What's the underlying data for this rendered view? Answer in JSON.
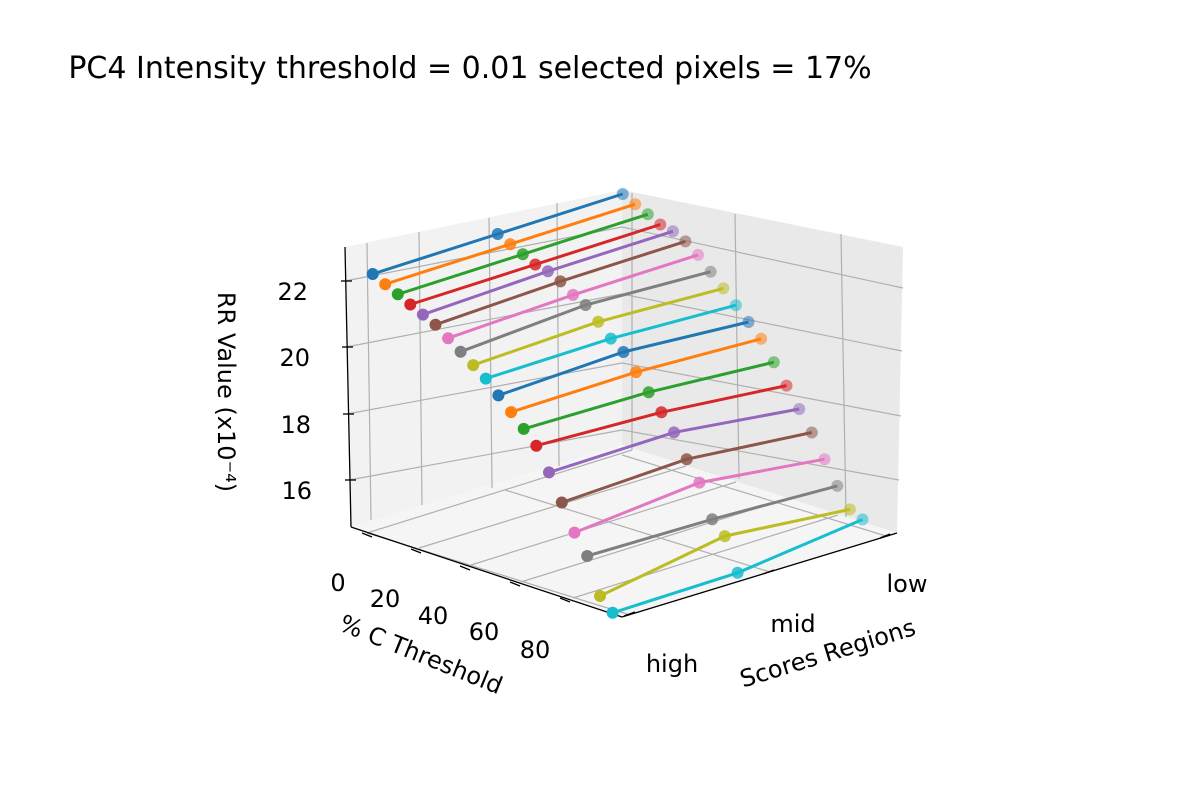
{
  "chart_data": {
    "type": "line",
    "projection": "3d",
    "title": "PC4 Intensity threshold = 0.01 selected pixels = 17%",
    "xlabel": "Scores Regions",
    "ylabel": "% C Threshold",
    "zlabel": "RR Value (x10⁻⁴)",
    "categories": [
      "high",
      "mid",
      "low"
    ],
    "x_tick_labels": [
      "low",
      "mid",
      "high"
    ],
    "y_tick_labels": [
      "0",
      "20",
      "40",
      "60",
      "80"
    ],
    "z_tick_labels": [
      "16",
      "18",
      "20",
      "22"
    ],
    "zlim": [
      15,
      23
    ],
    "grid": true,
    "marker": "circle",
    "series": [
      {
        "c_threshold": 0,
        "color": "#1f77b4",
        "values": [
          22.8,
          22.8,
          22.8
        ]
      },
      {
        "c_threshold": 5,
        "color": "#ff7f0e",
        "values": [
          22.6,
          22.6,
          22.6
        ]
      },
      {
        "c_threshold": 10,
        "color": "#2ca02c",
        "values": [
          22.4,
          22.4,
          22.4
        ]
      },
      {
        "c_threshold": 15,
        "color": "#d62728",
        "values": [
          22.2,
          22.2,
          22.2
        ]
      },
      {
        "c_threshold": 20,
        "color": "#9467bd",
        "values": [
          22.0,
          22.1,
          22.1
        ]
      },
      {
        "c_threshold": 25,
        "color": "#8c564b",
        "values": [
          21.8,
          21.9,
          21.9
        ]
      },
      {
        "c_threshold": 30,
        "color": "#e377c2",
        "values": [
          21.5,
          21.6,
          21.6
        ]
      },
      {
        "c_threshold": 35,
        "color": "#7f7f7f",
        "values": [
          21.2,
          21.4,
          21.2
        ]
      },
      {
        "c_threshold": 40,
        "color": "#bcbd22",
        "values": [
          20.9,
          21.0,
          20.8
        ]
      },
      {
        "c_threshold": 45,
        "color": "#17becf",
        "values": [
          20.6,
          20.6,
          20.4
        ]
      },
      {
        "c_threshold": 50,
        "color": "#1f77b4",
        "values": [
          20.2,
          20.3,
          20.0
        ]
      },
      {
        "c_threshold": 55,
        "color": "#ff7f0e",
        "values": [
          19.8,
          19.8,
          19.6
        ]
      },
      {
        "c_threshold": 60,
        "color": "#2ca02c",
        "values": [
          19.4,
          19.3,
          19.0
        ]
      },
      {
        "c_threshold": 65,
        "color": "#d62728",
        "values": [
          19.0,
          18.8,
          18.4
        ]
      },
      {
        "c_threshold": 70,
        "color": "#9467bd",
        "values": [
          18.3,
          18.3,
          17.8
        ]
      },
      {
        "c_threshold": 75,
        "color": "#8c564b",
        "values": [
          17.5,
          17.6,
          17.2
        ]
      },
      {
        "c_threshold": 80,
        "color": "#e377c2",
        "values": [
          16.7,
          17.0,
          16.5
        ]
      },
      {
        "c_threshold": 85,
        "color": "#7f7f7f",
        "values": [
          16.1,
          16.0,
          15.8
        ]
      },
      {
        "c_threshold": 90,
        "color": "#bcbd22",
        "values": [
          15.0,
          15.6,
          15.2
        ]
      },
      {
        "c_threshold": 95,
        "color": "#17becf",
        "values": [
          14.6,
          14.6,
          15.0
        ]
      }
    ]
  }
}
